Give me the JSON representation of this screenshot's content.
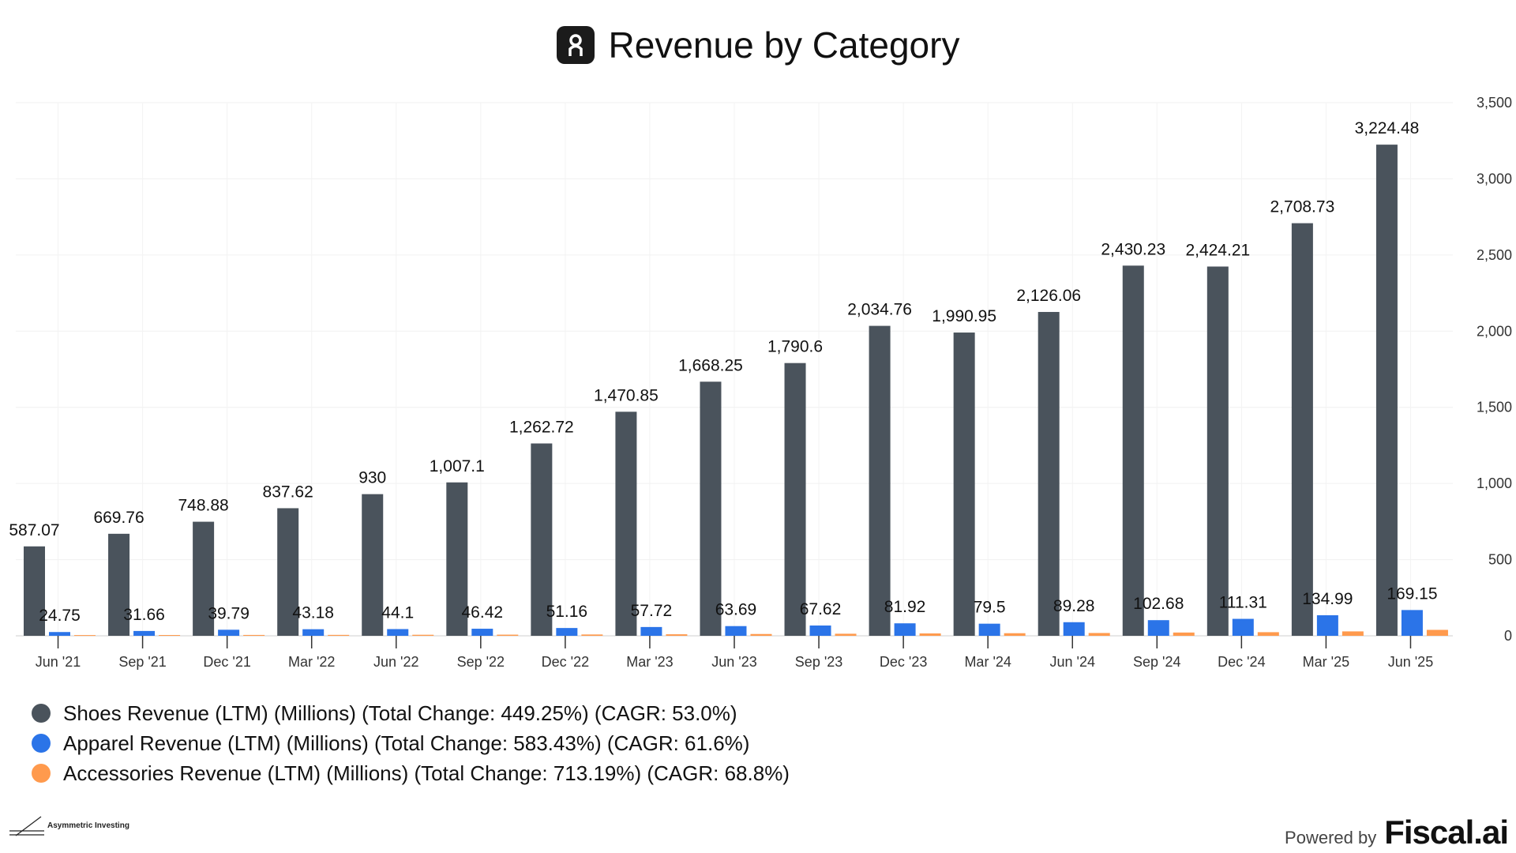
{
  "header": {
    "title": "Revenue by Category"
  },
  "colors": {
    "shoes": "#4a535c",
    "apparel": "#2b74e8",
    "accessories": "#ff9a4d"
  },
  "chart_data": {
    "type": "bar",
    "title": "Revenue by Category",
    "xlabel": "",
    "ylabel": "",
    "ylim": [
      0,
      3500
    ],
    "y_ticks": [
      0,
      500,
      1000,
      1500,
      2000,
      2500,
      3000,
      3500
    ],
    "y_tick_labels": [
      "0",
      "500",
      "1,000",
      "1,500",
      "2,000",
      "2,500",
      "3,000",
      "3,500"
    ],
    "y_axis_position": "right",
    "grid": true,
    "legend_position": "bottom-left",
    "categories": [
      "Jun '21",
      "Sep '21",
      "Dec '21",
      "Mar '22",
      "Jun '22",
      "Sep '22",
      "Dec '22",
      "Mar '23",
      "Jun '23",
      "Sep '23",
      "Dec '23",
      "Mar '24",
      "Jun '24",
      "Sep '24",
      "Dec '24",
      "Mar '25",
      "Jun '25"
    ],
    "series": [
      {
        "name": "Shoes Revenue (LTM) (Millions) (Total Change: 449.25%) (CAGR: 53.0%)",
        "color": "#4a535c",
        "values": [
          587.07,
          669.76,
          748.88,
          837.62,
          930,
          1007.1,
          1262.72,
          1470.85,
          1668.25,
          1790.6,
          2034.76,
          1990.95,
          2126.06,
          2430.23,
          2424.21,
          2708.73,
          3224.48
        ],
        "labels": [
          "587.07",
          "669.76",
          "748.88",
          "837.62",
          "930",
          "1,007.1",
          "1,262.72",
          "1,470.85",
          "1,668.25",
          "1,790.6",
          "2,034.76",
          "1,990.95",
          "2,126.06",
          "2,430.23",
          "2,424.21",
          "2,708.73",
          "3,224.48"
        ]
      },
      {
        "name": "Apparel Revenue (LTM) (Millions) (Total Change: 583.43%) (CAGR: 61.6%)",
        "color": "#2b74e8",
        "values": [
          24.75,
          31.66,
          39.79,
          43.18,
          44.1,
          46.42,
          51.16,
          57.72,
          63.69,
          67.62,
          81.92,
          79.5,
          89.28,
          102.68,
          111.31,
          134.99,
          169.15
        ],
        "labels": [
          "24.75",
          "31.66",
          "39.79",
          "43.18",
          "44.1",
          "46.42",
          "51.16",
          "57.72",
          "63.69",
          "67.62",
          "81.92",
          "79.5",
          "89.28",
          "102.68",
          "111.31",
          "134.99",
          "169.15"
        ]
      },
      {
        "name": "Accessories Revenue (LTM) (Millions) (Total Change: 713.19%) (CAGR: 68.8%)",
        "color": "#ff9a4d",
        "values": [
          4.8,
          5.2,
          5.6,
          6.0,
          6.8,
          7.5,
          8.6,
          10.0,
          11.8,
          13.5,
          15.6,
          17.0,
          18.4,
          21.5,
          23.8,
          29.0,
          39.0
        ],
        "labels": []
      }
    ]
  },
  "legend": {
    "items": [
      {
        "label": "Shoes Revenue (LTM) (Millions) (Total Change: 449.25%) (CAGR: 53.0%)"
      },
      {
        "label": "Apparel Revenue (LTM) (Millions) (Total Change: 583.43%) (CAGR: 61.6%)"
      },
      {
        "label": "Accessories Revenue (LTM) (Millions) (Total Change: 713.19%) (CAGR: 68.8%)"
      }
    ]
  },
  "footer": {
    "left_brand": "Asymmetric Investing",
    "powered_by": "Powered by",
    "brand": "Fiscal.ai"
  }
}
